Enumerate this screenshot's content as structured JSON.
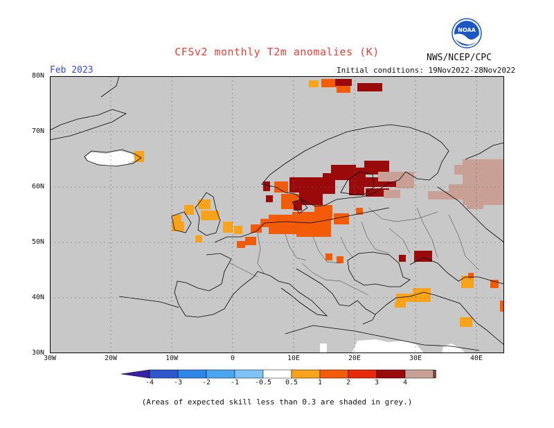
{
  "title": "CFSv2 monthly T2m anomalies (K)",
  "org": "NWS/NCEP/CPC",
  "logo_text": "NOAA",
  "valid_month": "Feb 2023",
  "initial_conditions": "Initial conditions: 19Nov2022-28Nov2022",
  "lat_labels": [
    "80N",
    "70N",
    "60N",
    "50N",
    "40N",
    "30N"
  ],
  "lon_labels": [
    "30W",
    "20W",
    "10W",
    "0",
    "10E",
    "20E",
    "30E",
    "40E"
  ],
  "colorbar": {
    "labels": [
      "-4",
      "-3",
      "-2",
      "-1",
      "-0.5",
      "0.5",
      "1",
      "2",
      "3",
      "4"
    ],
    "colors": [
      "#3b1fa8",
      "#2f58cc",
      "#2e86e8",
      "#4aa6f0",
      "#7cc4f8",
      "#ffffff",
      "#f9a31b",
      "#f25c08",
      "#e8290a",
      "#9b0a0a",
      "#c8a096",
      "#7b4a40"
    ]
  },
  "note": "(Areas of expected skill less than 0.3 are shaded in grey.)",
  "colors": {
    "skill_mask": "#c8c8c8",
    "coast": "#000000"
  }
}
